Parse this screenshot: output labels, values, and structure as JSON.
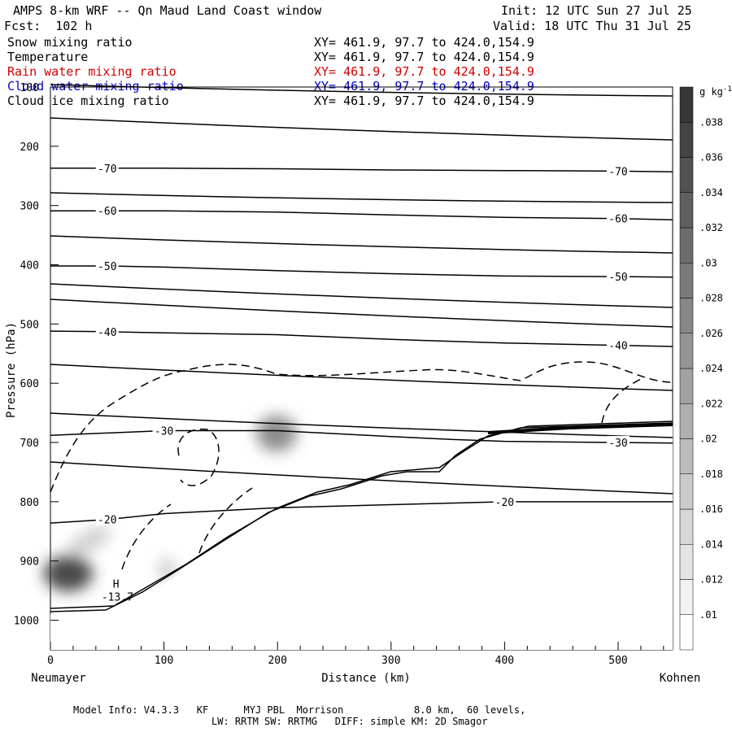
{
  "header": {
    "title": "AMPS 8-km WRF -- Qn Maud Land Coast window",
    "forecast": "Fcst:  102 h",
    "init": "Init: 12 UTC Sun 27 Jul 25",
    "valid": "Valid: 18 UTC Thu 31 Jul 25"
  },
  "fields": [
    {
      "name": "Snow mixing ratio",
      "xy": "XY= 461.9, 97.7 to 424.0,154.9",
      "color": "#000000"
    },
    {
      "name": "Temperature",
      "xy": "XY= 461.9, 97.7 to 424.0,154.9",
      "color": "#000000"
    },
    {
      "name": "Rain water mixing ratio",
      "xy": "XY= 461.9, 97.7 to 424.0,154.9",
      "color": "#d00000"
    },
    {
      "name": "Cloud water mixing ratio",
      "xy": "XY= 461.9, 97.7 to 424.0,154.9",
      "color": "#0000c0"
    },
    {
      "name": "Cloud ice mixing ratio",
      "xy": "XY= 461.9, 97.7 to 424.0,154.9",
      "color": "#000000"
    }
  ],
  "footer": {
    "line1": "Model Info: V4.3.3   KF      MYJ PBL  Morrison            8.0 km,  60 levels,",
    "line2": "LW: RRTM SW: RRTMG   DIFF: simple KM: 2D Smagor"
  },
  "chart_data": {
    "type": "contour",
    "xlabel": "Distance (km)",
    "ylabel": "Pressure (hPa)",
    "xlim": [
      0,
      548
    ],
    "ylim": [
      1050,
      100
    ],
    "x_ticks": [
      0,
      100,
      200,
      300,
      400,
      500
    ],
    "y_ticks": [
      100,
      200,
      300,
      400,
      500,
      600,
      700,
      800,
      900,
      1000
    ],
    "endpoint_left": "Neumayer",
    "endpoint_right": "Kohnen",
    "colorbar": {
      "unit": "g kg",
      "unit_exp": "-1",
      "labels": [
        ".01",
        ".012",
        ".014",
        ".016",
        ".018",
        ".02",
        ".022",
        ".024",
        ".026",
        ".028",
        ".03",
        ".032",
        ".034",
        ".036",
        ".038"
      ]
    },
    "isotherms": [
      {
        "label": "-70",
        "points": [
          [
            0,
            237
          ],
          [
            50,
            237
          ],
          [
            100,
            237
          ],
          [
            200,
            238
          ],
          [
            300,
            240
          ],
          [
            400,
            241
          ],
          [
            500,
            242
          ],
          [
            548,
            243
          ]
        ]
      },
      {
        "label": "-60",
        "points": [
          [
            0,
            309
          ],
          [
            50,
            309
          ],
          [
            100,
            309
          ],
          [
            200,
            311
          ],
          [
            300,
            316
          ],
          [
            400,
            320
          ],
          [
            500,
            322
          ],
          [
            548,
            324
          ]
        ]
      },
      {
        "label": "-50",
        "points": [
          [
            0,
            402
          ],
          [
            50,
            402
          ],
          [
            100,
            404
          ],
          [
            200,
            410
          ],
          [
            300,
            415
          ],
          [
            400,
            419
          ],
          [
            500,
            420
          ],
          [
            548,
            421
          ]
        ]
      },
      {
        "label": "-40",
        "points": [
          [
            0,
            512
          ],
          [
            50,
            513
          ],
          [
            100,
            515
          ],
          [
            200,
            518
          ],
          [
            300,
            526
          ],
          [
            400,
            532
          ],
          [
            500,
            536
          ],
          [
            548,
            538
          ]
        ]
      },
      {
        "label": "-30",
        "points": [
          [
            0,
            688
          ],
          [
            100,
            680
          ],
          [
            200,
            680
          ],
          [
            300,
            690
          ],
          [
            355,
            695
          ],
          [
            400,
            698
          ],
          [
            500,
            700
          ],
          [
            548,
            701
          ]
        ]
      },
      {
        "label": "-20",
        "points": [
          [
            0,
            836
          ],
          [
            50,
            830
          ],
          [
            100,
            820
          ],
          [
            200,
            810
          ],
          [
            300,
            805
          ],
          [
            400,
            800
          ],
          [
            548,
            800
          ]
        ]
      }
    ],
    "annotations": [
      {
        "text": "H",
        "x": 55,
        "y": 945
      },
      {
        "text": "-13.7",
        "x": 45,
        "y": 967
      }
    ]
  }
}
